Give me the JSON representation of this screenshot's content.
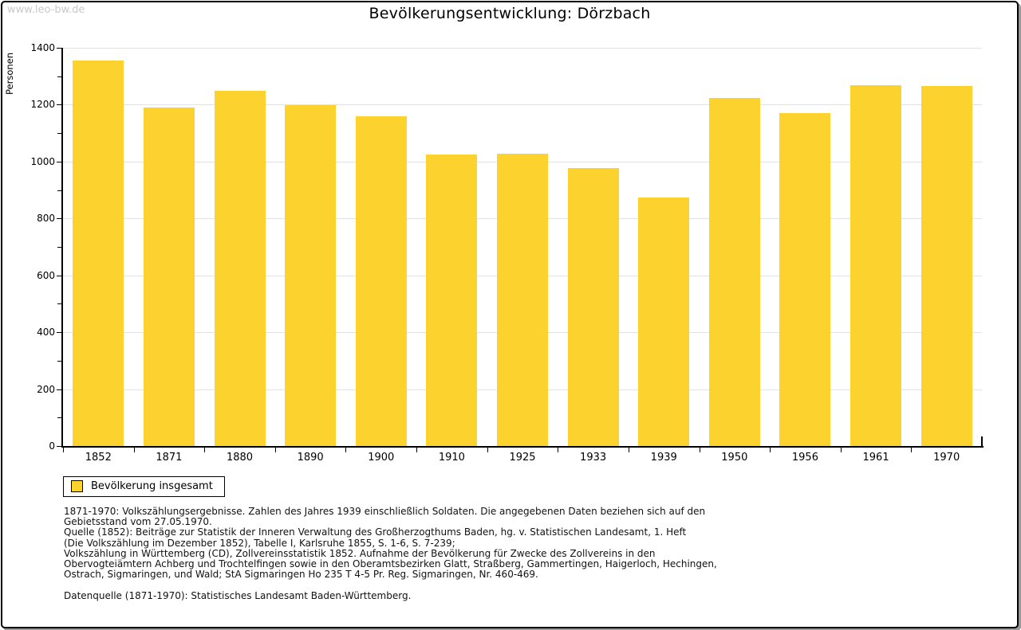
{
  "page": {
    "watermark": "www.leo-bw.de",
    "title": "Bevölkerungsentwicklung: Dörzbach"
  },
  "chart_data": {
    "type": "bar",
    "title": "Bevölkerungsentwicklung: Dörzbach",
    "xlabel": "",
    "ylabel": "Personen",
    "categories": [
      "1852",
      "1871",
      "1880",
      "1890",
      "1900",
      "1910",
      "1925",
      "1933",
      "1939",
      "1950",
      "1956",
      "1961",
      "1970"
    ],
    "series": [
      {
        "name": "Bevölkerung insgesamt",
        "color": "#FCD32E",
        "values": [
          1355,
          1190,
          1250,
          1198,
          1158,
          1025,
          1029,
          976,
          873,
          1223,
          1171,
          1269,
          1266
        ]
      }
    ],
    "ylim": [
      0,
      1400
    ],
    "ytick_step": 200,
    "yminor_step": 100,
    "grid": true,
    "legend_position": "bottom-left"
  },
  "legend": {
    "label": "Bevölkerung insgesamt"
  },
  "footnotes": {
    "lines": [
      "1871-1970: Volkszählungsergebnisse. Zahlen des Jahres 1939 einschließlich Soldaten. Die angegebenen Daten beziehen sich auf den",
      "Gebietsstand vom 27.05.1970.",
      "Quelle (1852): Beiträge zur Statistik der Inneren Verwaltung des Großherzogthums Baden, hg. v. Statistischen Landesamt, 1. Heft",
      "(Die Volkszählung im Dezember 1852), Tabelle I, Karlsruhe 1855, S. 1-6, S. 7-239;",
      "Volkszählung in Württemberg (CD), Zollvereinsstatistik 1852. Aufnahme der Bevölkerung für Zwecke des Zollvereins in den",
      "Obervogteiämtern Achberg und Trochtelfingen sowie in den Oberamtsbezirken Glatt, Straßberg, Gammertingen, Haigerloch, Hechingen,",
      "Ostrach, Sigmaringen, und Wald; StA Sigmaringen Ho 235 T 4-5 Pr. Reg. Sigmaringen, Nr. 460-469."
    ],
    "datasource": "Datenquelle (1871-1970): Statistisches Landesamt Baden-Württemberg."
  },
  "colors": {
    "bar": "#FCD32E",
    "grid": "#E2E2E2",
    "axis": "#000000",
    "watermark": "#C9C9C9",
    "shadow": "#9A9A9A"
  }
}
